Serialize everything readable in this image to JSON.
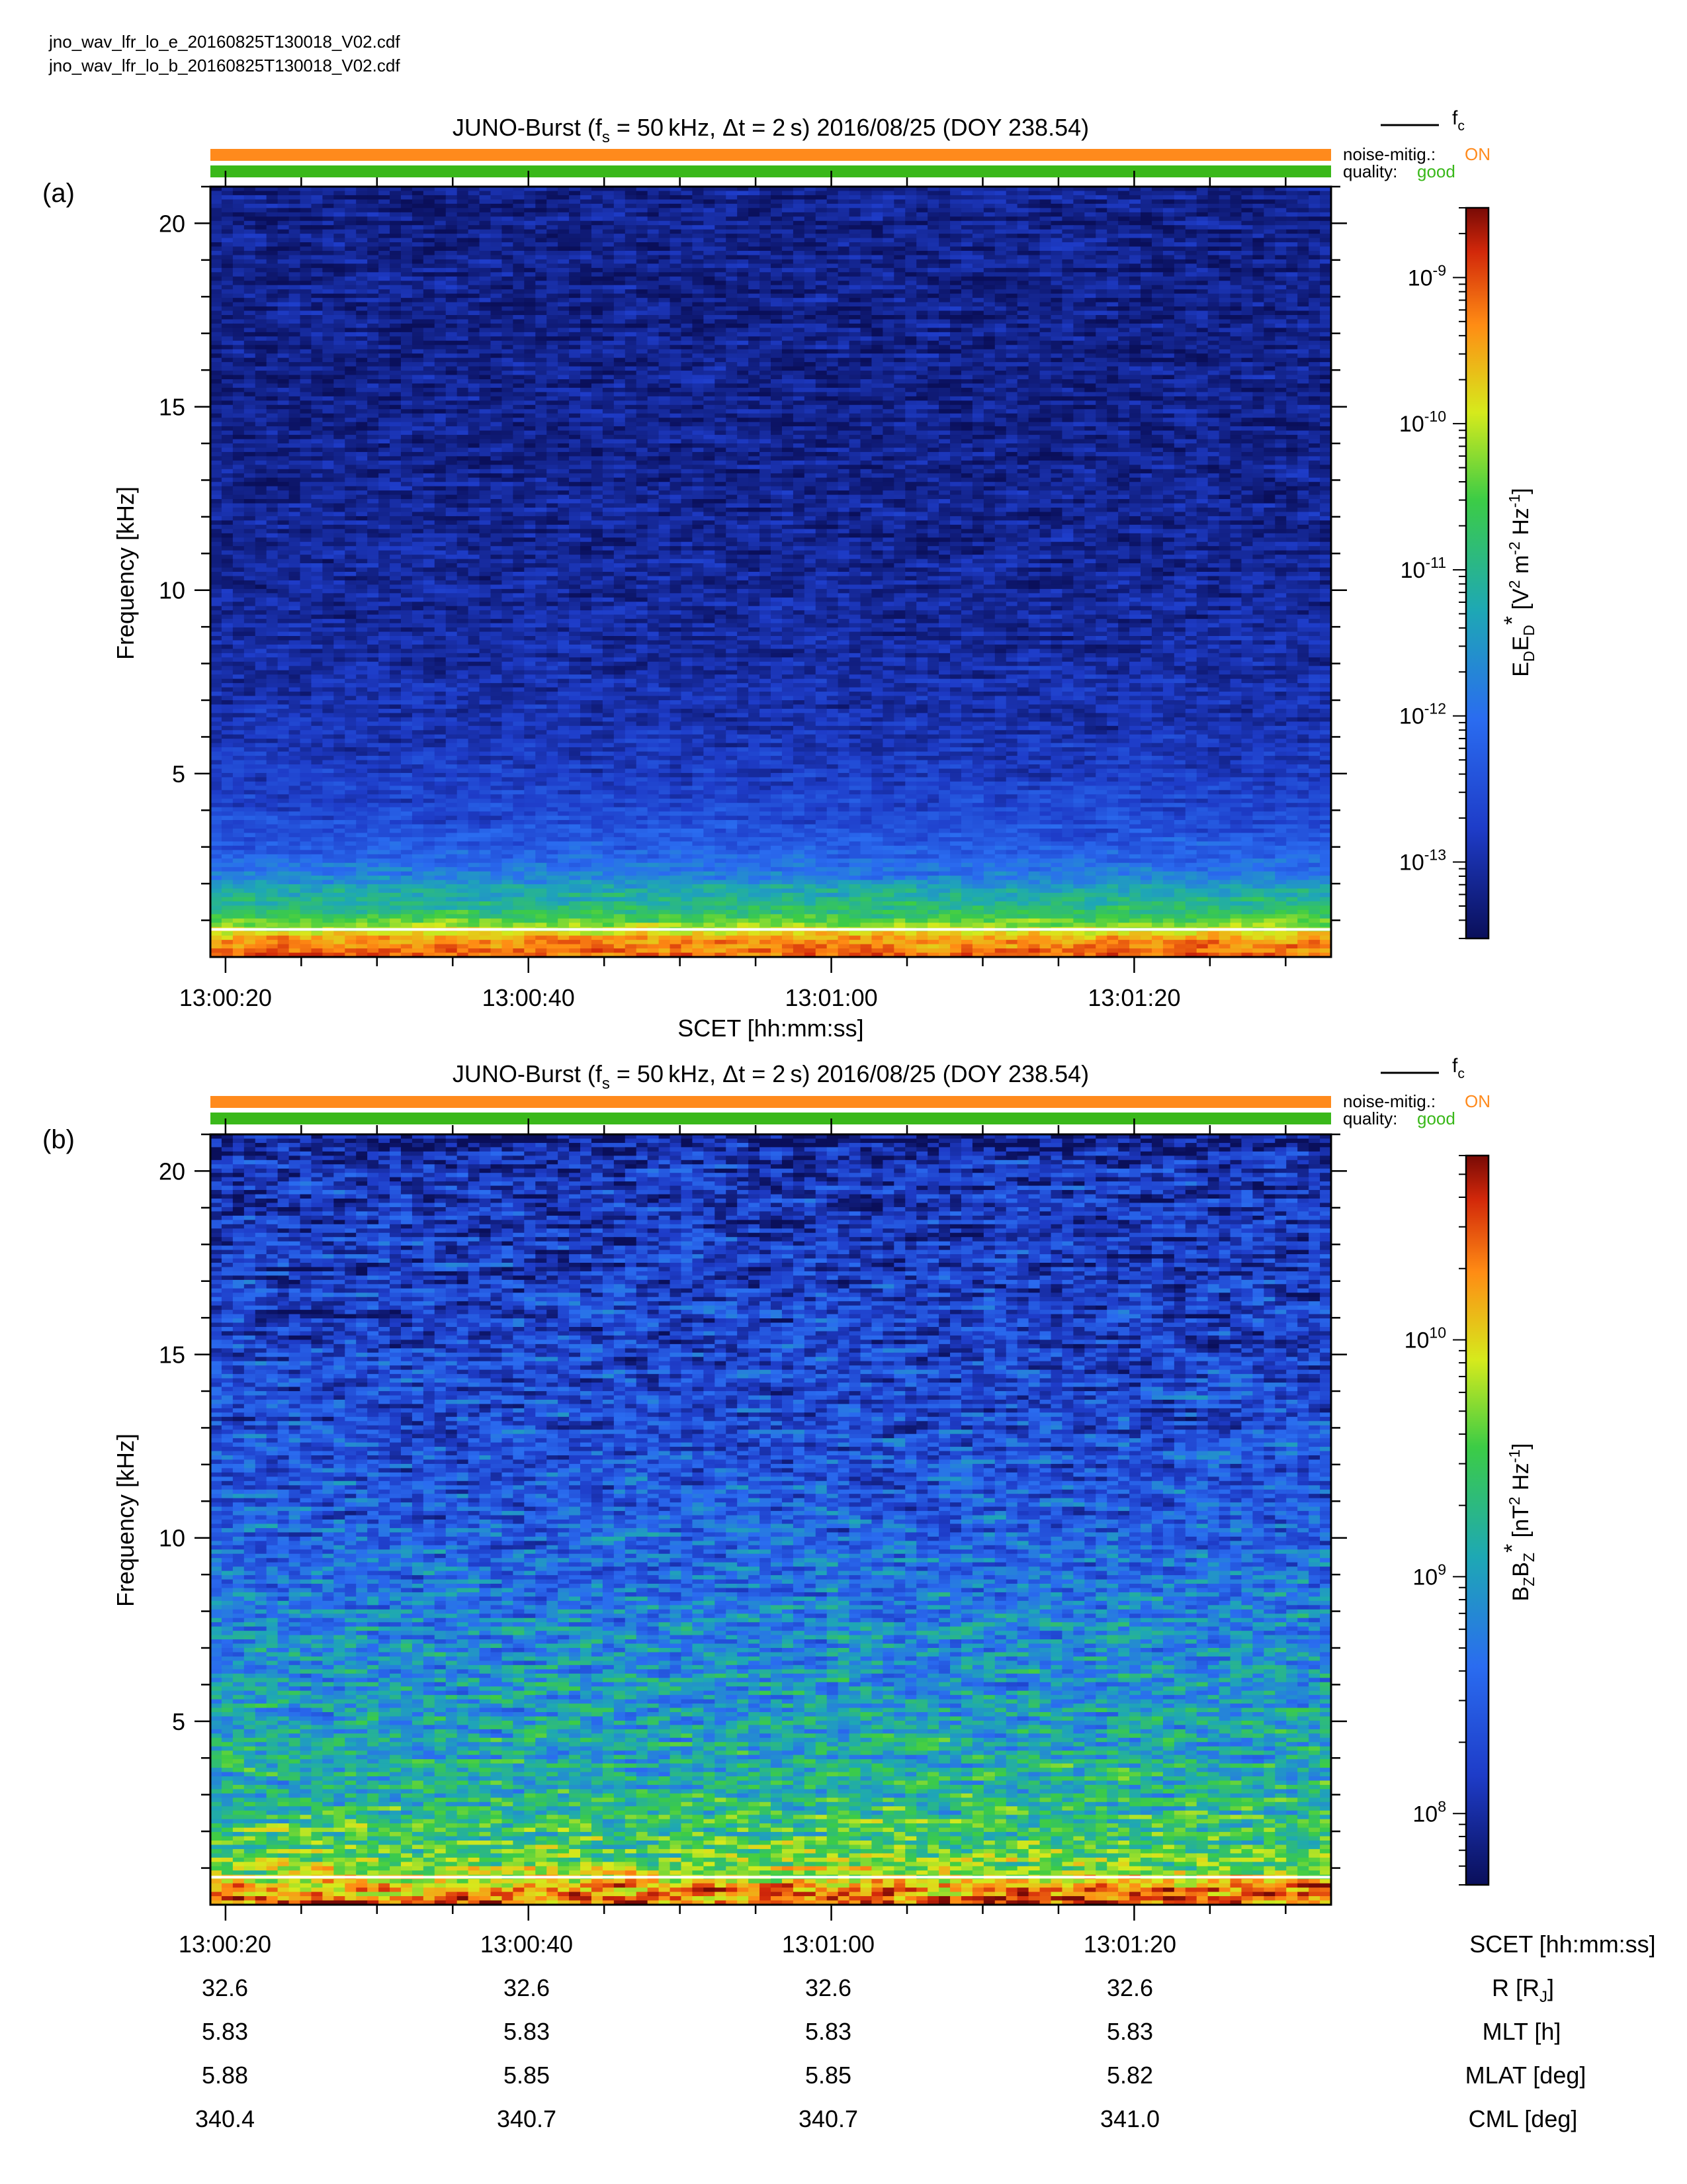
{
  "files": [
    "jno_wav_lfr_lo_e_20160825T130018_V02.cdf",
    "jno_wav_lfr_lo_b_20160825T130018_V02.cdf"
  ],
  "colors": {
    "noise_bar": "#ff8a1c",
    "quality_bar": "#3ab81a",
    "fc_line": "#ffffff"
  },
  "fc_legend": "f",
  "fc_legend_sub": "c",
  "status": {
    "noise_label": "noise-mitig.:",
    "noise_value": "ON",
    "quality_label": "quality:",
    "quality_value": "good"
  },
  "xaxis_title": "SCET [hh:mm:ss]",
  "ephemeris": {
    "rows": [
      {
        "label": "SCET [hh:mm:ss]",
        "values": [
          "13:00:20",
          "13:00:40",
          "13:01:00",
          "13:01:20"
        ]
      },
      {
        "label": "R [R",
        "label_sub": "J",
        "label_end": "]",
        "values": [
          "32.6",
          "32.6",
          "32.6",
          "32.6"
        ]
      },
      {
        "label": "MLT [h]",
        "values": [
          "5.83",
          "5.83",
          "5.83",
          "5.83"
        ]
      },
      {
        "label": "MLAT [deg]",
        "values": [
          "5.88",
          "5.85",
          "5.85",
          "5.82"
        ]
      },
      {
        "label": "CML [deg]",
        "values": [
          "340.4",
          "340.7",
          "340.7",
          "341.0"
        ]
      }
    ]
  },
  "chart_data": [
    {
      "type": "heatmap",
      "panel": "(a)",
      "title_parts": [
        "JUNO-Burst (f",
        "s",
        " = 50 kHz, Δt = 2 s)  2016/08/25 (DOY 238.54)"
      ],
      "xlabel": "SCET [hh:mm:ss]",
      "ylabel": "Frequency [kHz]",
      "x_tick_labels": [
        "13:00:20",
        "13:00:40",
        "13:01:00",
        "13:01:20"
      ],
      "x_range_seconds": [
        19,
        93
      ],
      "y_ticks": [
        5,
        10,
        15,
        20
      ],
      "y_range": [
        0,
        21
      ],
      "fc_khz": 0.75,
      "colorbar": {
        "scale": "log",
        "range": [
          3e-14,
          3e-09
        ],
        "tick_exponents": [
          -13,
          -12,
          -11,
          -10,
          -9
        ],
        "label_parts": [
          "E",
          "D",
          "E",
          "D",
          "*",
          "  [V",
          "2",
          " m",
          "-2",
          " Hz",
          "-1",
          "]"
        ]
      },
      "spectrum_profile": {
        "frequency_khz": [
          0,
          0.5,
          0.8,
          1.2,
          1.8,
          2.2,
          3,
          4,
          6,
          10,
          15,
          21
        ],
        "log_power": [
          -9.1,
          -9.4,
          -10.1,
          -10.8,
          -11.2,
          -11.8,
          -12.3,
          -12.6,
          -12.9,
          -13.1,
          -13.2,
          -13.2
        ]
      }
    },
    {
      "type": "heatmap",
      "panel": "(b)",
      "title_parts": [
        "JUNO-Burst (f",
        "s",
        " = 50 kHz, Δt = 2 s)  2016/08/25 (DOY 238.54)"
      ],
      "xlabel": "",
      "ylabel": "Frequency [kHz]",
      "x_tick_labels": [
        "13:00:20",
        "13:00:40",
        "13:01:00",
        "13:01:20"
      ],
      "x_range_seconds": [
        19,
        93
      ],
      "y_ticks": [
        5,
        10,
        15,
        20
      ],
      "y_range": [
        0,
        21
      ],
      "fc_khz": 0.75,
      "colorbar": {
        "scale": "log",
        "range": [
          50000000.0,
          60000000000.0
        ],
        "tick_exponents": [
          8,
          9,
          10
        ],
        "label_parts": [
          "B",
          "Z",
          "B",
          "Z",
          "*",
          "  [nT",
          "2",
          " Hz",
          "-1",
          "]"
        ]
      },
      "spectrum_profile": {
        "frequency_khz": [
          0,
          0.5,
          0.8,
          1.5,
          2.5,
          4,
          6,
          8,
          10,
          13,
          17,
          20.3,
          21
        ],
        "log_power": [
          10.4,
          10.2,
          9.8,
          9.5,
          9.3,
          9.1,
          8.95,
          8.75,
          8.5,
          8.35,
          8.2,
          8.1,
          7.8
        ]
      }
    }
  ]
}
